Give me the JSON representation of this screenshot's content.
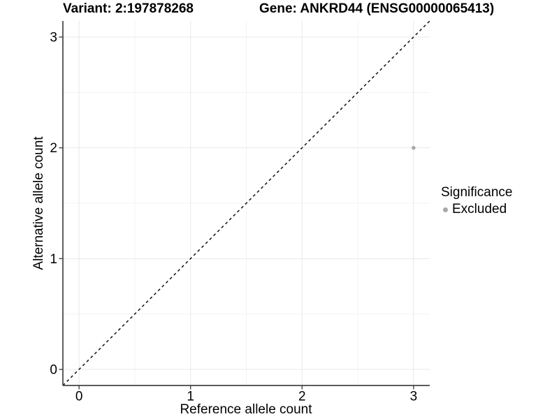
{
  "chart_data": {
    "type": "scatter",
    "title_left": "Variant: 2:197878268",
    "title_right": "Gene: ANKRD44 (ENSG00000065413)",
    "xlabel": "Reference allele count",
    "ylabel": "Alternative allele count",
    "xlim": [
      -0.145,
      3.145
    ],
    "ylim": [
      -0.145,
      3.145
    ],
    "x_major_ticks": [
      0,
      1,
      2,
      3
    ],
    "y_major_ticks": [
      0,
      1,
      2,
      3
    ],
    "x_minor_ticks": [
      0.5,
      1.5,
      2.5
    ],
    "y_minor_ticks": [
      0.5,
      1.5,
      2.5
    ],
    "grid": true,
    "reference_line": {
      "type": "identity",
      "style": "dashed",
      "color": "#111111"
    },
    "series": [
      {
        "name": "Excluded",
        "color": "#a9a9a9",
        "points": [
          {
            "x": 3,
            "y": 2
          }
        ]
      }
    ],
    "legend": {
      "title": "Significance",
      "position": "right",
      "entries": [
        {
          "label": "Excluded",
          "color": "#a9a9a9"
        }
      ]
    }
  },
  "colors": {
    "background": "#ffffff",
    "grid_major": "#e8e8e8",
    "grid_minor": "#f3f3f3",
    "axis_line": "#444444",
    "tick_mark": "#444444",
    "text": "#000000",
    "point": "#a9a9a9"
  }
}
